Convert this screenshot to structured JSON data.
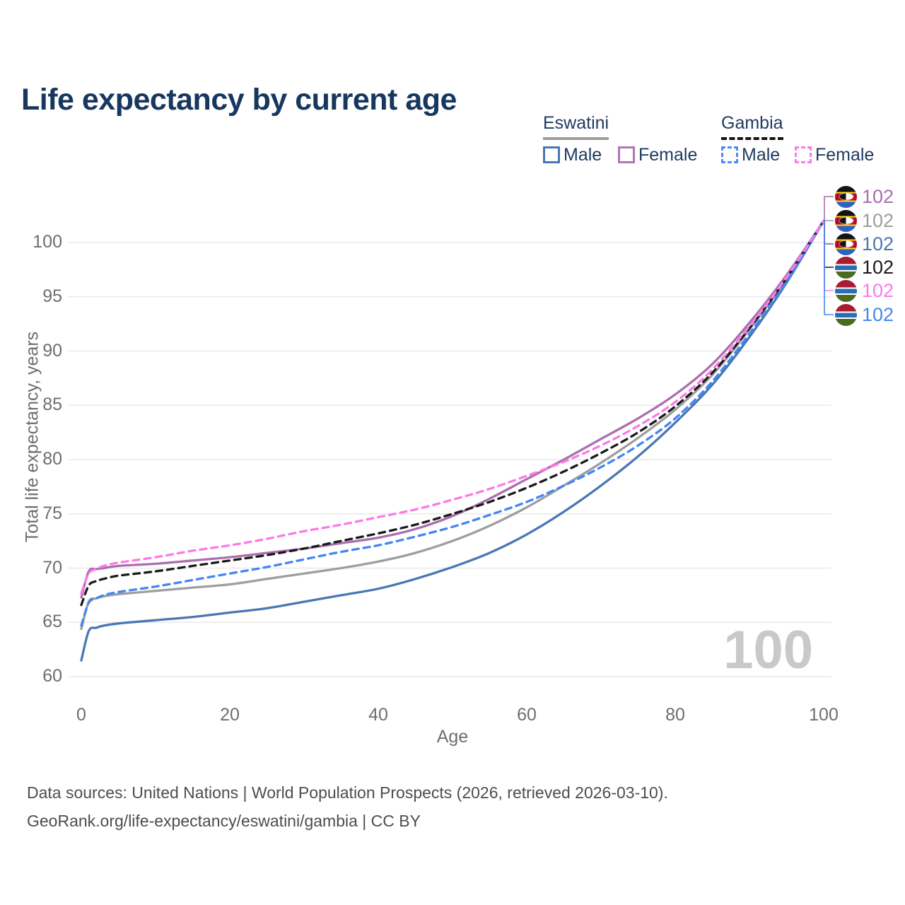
{
  "title": "Life expectancy by current age",
  "legend": {
    "groups": [
      {
        "label": "Eswatini",
        "line_style": "solid",
        "line_color": "#9e9e9e",
        "items": [
          {
            "label": "Male",
            "color": "#4a77b4"
          },
          {
            "label": "Female",
            "color": "#b276b2"
          }
        ]
      },
      {
        "label": "Gambia",
        "line_style": "dashed",
        "line_color": "#141414",
        "items": [
          {
            "label": "Male",
            "color": "#4b8bf5"
          },
          {
            "label": "Female",
            "color": "#fc7ae8"
          }
        ]
      }
    ]
  },
  "right_labels": [
    {
      "country": "Eswatini",
      "flag": "eswatini",
      "value": "102",
      "color": "#aa6fae"
    },
    {
      "country": "Eswatini",
      "flag": "eswatini",
      "value": "102",
      "color": "#9e9e9e"
    },
    {
      "country": "Eswatini",
      "flag": "eswatini",
      "value": "102",
      "color": "#4a77b4"
    },
    {
      "country": "Gambia",
      "flag": "gambia",
      "value": "102",
      "color": "#1a1a1a"
    },
    {
      "country": "Gambia",
      "flag": "gambia",
      "value": "102",
      "color": "#fc7ae8"
    },
    {
      "country": "Gambia",
      "flag": "gambia",
      "value": "102",
      "color": "#4486f2"
    }
  ],
  "watermark": "100",
  "footer": {
    "line1": "Data sources: United Nations | World Population Prospects (2026, retrieved 2026-03-10).",
    "line2": "GeoRank.org/life-expectancy/eswatini/gambia | CC BY"
  },
  "chart_data": {
    "type": "line",
    "title": "Life expectancy by current age",
    "xlabel": "Age",
    "ylabel": "Total life expectancy, years",
    "xlim": [
      0,
      100
    ],
    "ylim": [
      58.5,
      103
    ],
    "xticks": [
      0,
      20,
      40,
      60,
      80,
      100
    ],
    "yticks": [
      60,
      65,
      70,
      75,
      80,
      85,
      90,
      95,
      100
    ],
    "grid": "horizontal",
    "legend_position": "top-right",
    "hover_age": 100,
    "end_value_all_series": 102,
    "x": [
      0,
      1,
      2,
      3,
      5,
      10,
      15,
      20,
      25,
      30,
      35,
      40,
      45,
      50,
      55,
      60,
      65,
      70,
      75,
      80,
      85,
      90,
      95,
      100
    ],
    "series": [
      {
        "name": "Eswatini Male",
        "color": "#4a77b4",
        "dash": "solid",
        "values": [
          61.5,
          64.2,
          64.5,
          64.7,
          64.9,
          65.2,
          65.5,
          65.9,
          66.3,
          66.9,
          67.5,
          68.1,
          69.0,
          70.1,
          71.4,
          73.1,
          75.2,
          77.6,
          80.3,
          83.4,
          86.9,
          91.3,
          96.3,
          102
        ]
      },
      {
        "name": "Eswatini",
        "color": "#9e9e9e",
        "dash": "solid",
        "values": [
          64.4,
          66.9,
          67.2,
          67.4,
          67.6,
          67.9,
          68.2,
          68.5,
          69.0,
          69.5,
          70.0,
          70.6,
          71.4,
          72.5,
          73.9,
          75.6,
          77.6,
          79.7,
          82.0,
          84.6,
          87.8,
          92.0,
          96.7,
          102
        ]
      },
      {
        "name": "Eswatini Female",
        "color": "#aa6fae",
        "dash": "solid",
        "values": [
          67.3,
          69.7,
          69.9,
          70.0,
          70.2,
          70.4,
          70.7,
          71.0,
          71.4,
          71.8,
          72.3,
          72.8,
          73.6,
          74.8,
          76.4,
          78.2,
          80.0,
          81.9,
          83.8,
          86.0,
          88.8,
          92.6,
          97.0,
          102
        ]
      },
      {
        "name": "Gambia",
        "color": "#1a1a1a",
        "dash": "dashed",
        "values": [
          66.6,
          68.4,
          68.8,
          69.0,
          69.3,
          69.7,
          70.2,
          70.7,
          71.2,
          71.8,
          72.5,
          73.2,
          74.0,
          75.0,
          76.1,
          77.4,
          78.9,
          80.6,
          82.5,
          84.9,
          88.0,
          92.1,
          96.7,
          102
        ]
      },
      {
        "name": "Gambia Male",
        "color": "#4486f2",
        "dash": "dashed",
        "values": [
          64.7,
          66.8,
          67.2,
          67.5,
          67.8,
          68.3,
          68.9,
          69.5,
          70.1,
          70.8,
          71.5,
          72.1,
          72.9,
          73.8,
          74.9,
          76.1,
          77.6,
          79.3,
          81.3,
          83.8,
          87.2,
          91.6,
          96.4,
          102
        ]
      },
      {
        "name": "Gambia Female",
        "color": "#fc7ae8",
        "dash": "dashed",
        "values": [
          67.7,
          69.5,
          69.9,
          70.2,
          70.5,
          71.0,
          71.6,
          72.1,
          72.7,
          73.4,
          74.0,
          74.7,
          75.4,
          76.3,
          77.3,
          78.5,
          79.8,
          81.3,
          83.1,
          85.3,
          88.3,
          92.3,
          96.8,
          102
        ]
      }
    ]
  }
}
